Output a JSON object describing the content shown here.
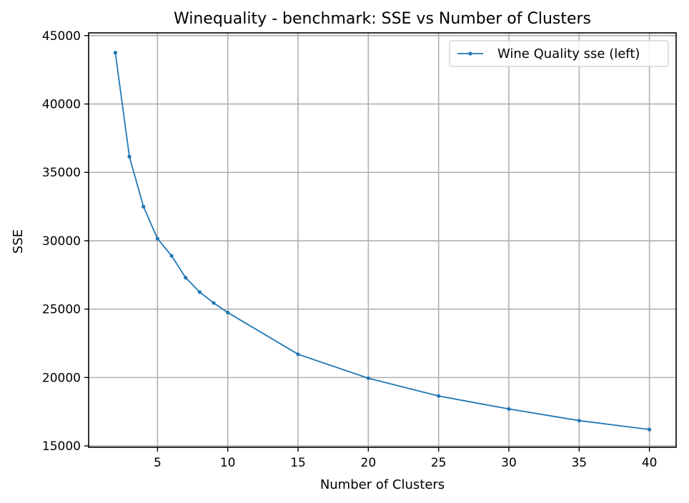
{
  "chart_data": {
    "type": "line",
    "title": "Winequality - benchmark: SSE vs Number of Clusters",
    "xlabel": "Number of Clusters",
    "ylabel": "SSE",
    "xlim": [
      0.1,
      41.9
    ],
    "ylim": [
      14900,
      45200
    ],
    "xticks": [
      5,
      10,
      15,
      20,
      25,
      30,
      35,
      40
    ],
    "yticks": [
      15000,
      20000,
      25000,
      30000,
      35000,
      40000,
      45000
    ],
    "grid": true,
    "legend_position": "top-right",
    "series": [
      {
        "name": "Wine Quality sse (left)",
        "color": "#1f77b4",
        "x": [
          2,
          3,
          4,
          5,
          6,
          7,
          8,
          9,
          10,
          15,
          20,
          25,
          30,
          35,
          40
        ],
        "y": [
          43750,
          36150,
          32500,
          30150,
          28900,
          27300,
          26250,
          25450,
          24750,
          21700,
          19950,
          18650,
          17700,
          16850,
          16200
        ]
      }
    ]
  }
}
